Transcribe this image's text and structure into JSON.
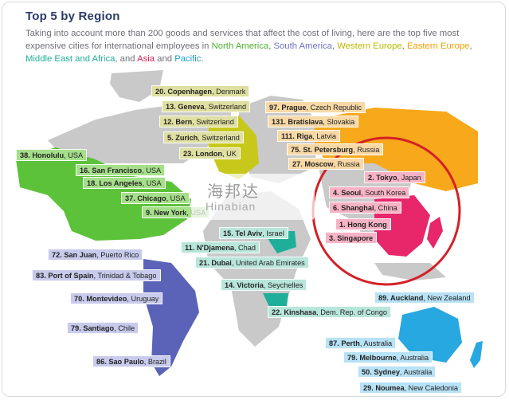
{
  "title": "Top 5 by Region",
  "intro": {
    "lead": "Taking into account more than 200 goods and services that affect the cost of living, here are the top five most expensive cities for international employees in ",
    "r1": "North America",
    "s1": ", ",
    "r2": "South America",
    "s2": ", ",
    "r3": "Western Europe",
    "s3": ", ",
    "r4": "Eastern Europe",
    "s4": ", ",
    "r5": "Middle East and Africa",
    "s5": ", and ",
    "r6": "Asia",
    "s6": " and ",
    "r7": "Pacific",
    "s7": "."
  },
  "watermark": {
    "cn": "海邦达",
    "en": "Hinabian"
  },
  "regions": {
    "north_america": [
      {
        "rank": "38. Honolulu",
        "place": ", USA"
      },
      {
        "rank": "16. San Francisco",
        "place": ", USA"
      },
      {
        "rank": "18. Los Angeles",
        "place": ", USA"
      },
      {
        "rank": "37. Chicago",
        "place": ", USA"
      },
      {
        "rank": "9. New York",
        "place": ", USA"
      }
    ],
    "western_europe": [
      {
        "rank": "20. Copenhagen",
        "place": ", Denmark"
      },
      {
        "rank": "13. Geneva",
        "place": ", Switzerland"
      },
      {
        "rank": "12. Bern",
        "place": ", Switzerland"
      },
      {
        "rank": "5. Zurich",
        "place": ", Switzerland"
      },
      {
        "rank": "23. London",
        "place": ", UK"
      }
    ],
    "eastern_europe": [
      {
        "rank": "97. Prague",
        "place": ", Czech Republic"
      },
      {
        "rank": "131. Bratislava",
        "place": ", Slovakia"
      },
      {
        "rank": "111. Riga",
        "place": ", Latvia"
      },
      {
        "rank": "75. St. Petersburg",
        "place": ", Russia"
      },
      {
        "rank": "27. Moscow",
        "place": ", Russia"
      }
    ],
    "asia": [
      {
        "rank": "2. Tokyo",
        "place": ", Japan"
      },
      {
        "rank": "4. Seoul",
        "place": ", South Korea"
      },
      {
        "rank": "6. Shanghai",
        "place": ", China"
      },
      {
        "rank": "1. Hong Kong",
        "place": ""
      },
      {
        "rank": "3. Singapore",
        "place": ""
      }
    ],
    "middle_east_africa": [
      {
        "rank": "15. Tel Aviv",
        "place": ", Israel"
      },
      {
        "rank": "11. N'Djamena",
        "place": ", Chad"
      },
      {
        "rank": "21. Dubai",
        "place": ", United Arab Emirates"
      },
      {
        "rank": "14. Victoria",
        "place": ", Seychelles"
      },
      {
        "rank": "22. Kinshasa",
        "place": ", Dem. Rep. of Congo"
      }
    ],
    "south_america": [
      {
        "rank": "72. San Juan",
        "place": ", Puerto Rico"
      },
      {
        "rank": "83. Port of Spain",
        "place": ", Trinidad & Tobago"
      },
      {
        "rank": "70. Montevideo",
        "place": ", Uruguay"
      },
      {
        "rank": "79. Santiago",
        "place": ", Chile"
      },
      {
        "rank": "86. Sao Paulo",
        "place": ", Brazil"
      }
    ],
    "pacific": [
      {
        "rank": "89. Auckland",
        "place": ", New Zealand"
      },
      {
        "rank": "87. Perth",
        "place": ", Australia"
      },
      {
        "rank": "79. Melbourne",
        "place": ", Australia"
      },
      {
        "rank": "50. Sydney",
        "place": ", Australia"
      },
      {
        "rank": "29. Noumea",
        "place": ", New Caledonia"
      }
    ]
  },
  "colors": {
    "north_america": "#5cc23a",
    "south_america": "#5a63b8",
    "western_europe": "#c8c81a",
    "eastern_europe": "#f7a81b",
    "middle_east_africa": "#1fae9a",
    "asia": "#e8266a",
    "pacific": "#27a8e0",
    "highlight_circle": "#d42027",
    "land_grey": "#c9c9c9"
  }
}
